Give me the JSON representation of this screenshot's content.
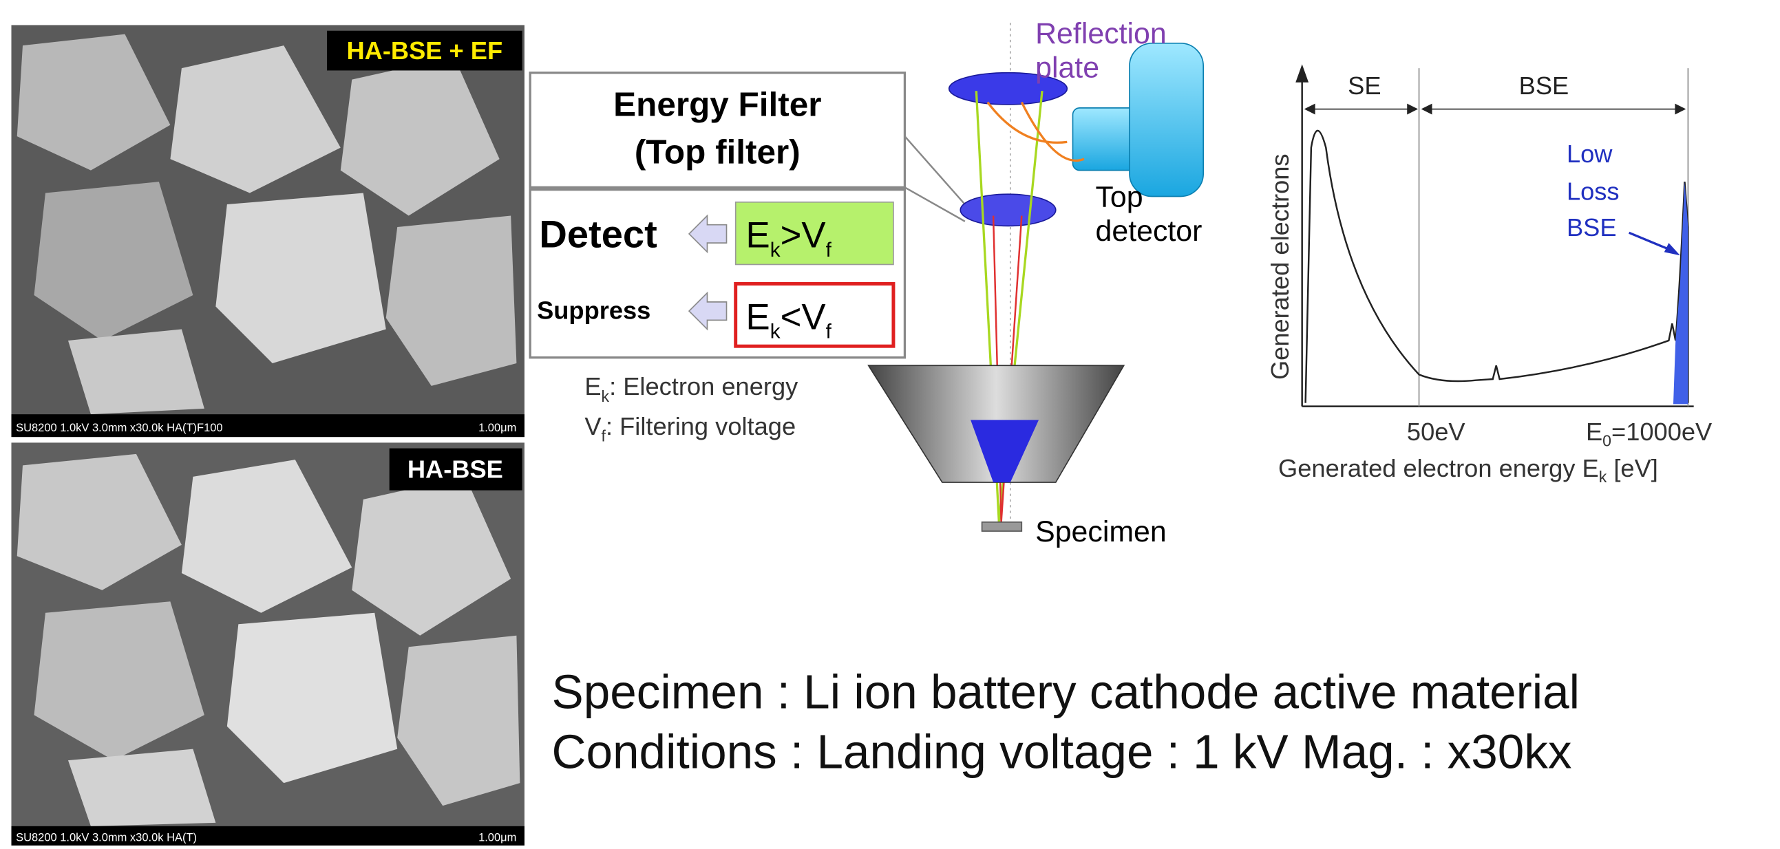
{
  "images": [
    {
      "badge": "HA-BSE + EF",
      "info": "SU8200 1.0kV 3.0mm x30.0k HA(T)F100",
      "scale": "1.00μm"
    },
    {
      "badge": "HA-BSE",
      "info": "SU8200 1.0kV 3.0mm x30.0k HA(T)",
      "scale": "1.00μm"
    }
  ],
  "filter": {
    "title": [
      "Energy Filter",
      "(Top filter)"
    ],
    "detect": {
      "label": "Detect",
      "e": "E",
      "e_sub": "k",
      "op": ">",
      "v": "V",
      "v_sub": "f"
    },
    "suppress": {
      "label": "Suppress",
      "e": "E",
      "e_sub": "k",
      "op": "<",
      "v": "V",
      "v_sub": "f"
    },
    "legend": [
      {
        "sym": "E",
        "sub": "k",
        "text": ": Electron energy"
      },
      {
        "sym": "V",
        "sub": "f",
        "text": ": Filtering voltage"
      }
    ]
  },
  "setup": {
    "reflection_plate": [
      "Reflection",
      "plate"
    ],
    "top_detector": [
      "Top",
      "detector"
    ],
    "specimen": "Specimen"
  },
  "spectrum": {
    "se": "SE",
    "bse": "BSE",
    "low_loss": [
      "Low",
      "Loss",
      "BSE"
    ],
    "y_label": "Generated electrons",
    "tick_50": "50eV",
    "tick_e0": {
      "sym": "E",
      "sub": "0",
      "text": "=1000eV"
    },
    "x_label": {
      "text": "Generated electron energy E",
      "sub": "k",
      "unit": " [eV]"
    }
  },
  "notes": [
    "Specimen : Li ion battery cathode active material",
    "Conditions : Landing voltage : 1 kV Mag. : x30kx"
  ]
}
